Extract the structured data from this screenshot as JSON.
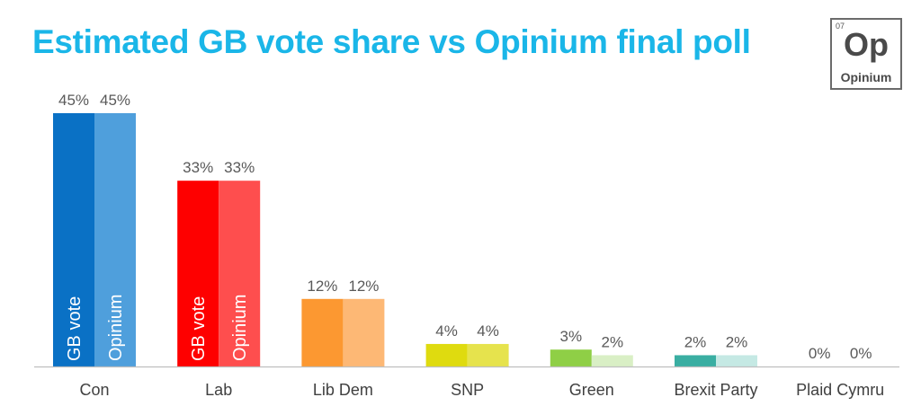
{
  "title": "Estimated GB vote share vs Opinium final poll",
  "logo": {
    "number": "07",
    "symbol": "Op",
    "name": "Opinium"
  },
  "chart_data": {
    "type": "bar",
    "title": "Estimated GB vote share vs Opinium final poll",
    "xlabel": "",
    "ylabel": "",
    "ylim": [
      0,
      50
    ],
    "grid": false,
    "categories": [
      "Con",
      "Lab",
      "Lib Dem",
      "SNP",
      "Green",
      "Brexit Party",
      "Plaid Cymru"
    ],
    "series": [
      {
        "name": "GB vote",
        "values": [
          45,
          33,
          12,
          4,
          3,
          2,
          0
        ]
      },
      {
        "name": "Opinium",
        "values": [
          45,
          33,
          12,
          4,
          2,
          2,
          0
        ]
      }
    ],
    "data_labels": [
      [
        "45%",
        "33%",
        "12%",
        "4%",
        "3%",
        "2%",
        "0%"
      ],
      [
        "45%",
        "33%",
        "12%",
        "4%",
        "2%",
        "2%",
        "0%"
      ]
    ],
    "in_bar_labels": [
      {
        "category_index": 0,
        "labels": [
          "GB vote",
          "Opinium"
        ]
      },
      {
        "category_index": 1,
        "labels": [
          "GB vote",
          "Opinium"
        ]
      }
    ],
    "colors": [
      [
        "#0a71c5",
        "#4f9fdc"
      ],
      [
        "#fe0000",
        "#fe4e4e"
      ],
      [
        "#fc9831",
        "#fdb875"
      ],
      [
        "#dfdb0f",
        "#e6e34d"
      ],
      [
        "#8fcf46",
        "#d9efc5"
      ],
      [
        "#3aaea2",
        "#c5e9e4"
      ],
      [
        "#2e8b57",
        "#9bd1a7"
      ]
    ]
  }
}
